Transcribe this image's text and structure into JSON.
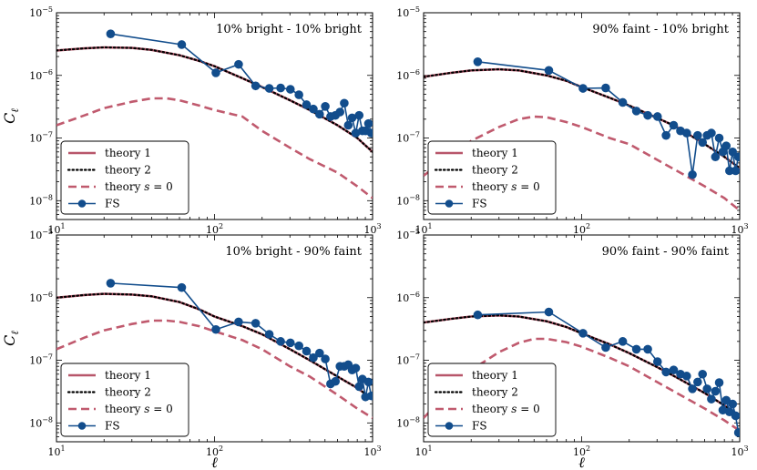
{
  "figure": {
    "xlabel": "ℓ",
    "ylabel": "C",
    "ylabel_sub": "ℓ",
    "colors": {
      "theory1": "#b8566a",
      "theory2": "#000000",
      "theory_s0": "#c05a6e",
      "fs": "#124d8c"
    }
  },
  "chart_data": [
    {
      "type": "line",
      "title": "10% bright - 10% bright",
      "xscale": "log",
      "yscale": "log",
      "xlim": [
        10,
        1000
      ],
      "ylim": [
        5e-09,
        1e-05
      ],
      "xticks": [
        "10^1",
        "10^2",
        "10^3"
      ],
      "yticks": [
        "10^-8",
        "10^-7",
        "10^-6",
        "10^-5"
      ],
      "legend": [
        "theory 1",
        "theory 2",
        "theory s = 0",
        "FS"
      ],
      "legend_position": "lower-left",
      "series": [
        {
          "name": "theory 1",
          "x": [
            10,
            15,
            20,
            30,
            40,
            60,
            80,
            100,
            150,
            200,
            300,
            400,
            600,
            800,
            1000
          ],
          "y": [
            2.5e-06,
            2.7e-06,
            2.8e-06,
            2.75e-06,
            2.55e-06,
            2.1e-06,
            1.7e-06,
            1.4e-06,
            9e-07,
            6.5e-07,
            4e-07,
            2.8e-07,
            1.6e-07,
            1e-07,
            6e-08
          ]
        },
        {
          "name": "theory 2",
          "x": [
            10,
            15,
            20,
            30,
            40,
            60,
            80,
            100,
            150,
            200,
            300,
            400,
            600,
            800,
            1000
          ],
          "y": [
            2.5e-06,
            2.7e-06,
            2.8e-06,
            2.75e-06,
            2.55e-06,
            2.1e-06,
            1.7e-06,
            1.4e-06,
            9e-07,
            6.5e-07,
            4e-07,
            2.8e-07,
            1.6e-07,
            1e-07,
            6e-08
          ]
        },
        {
          "name": "theory s = 0",
          "x": [
            10,
            15,
            20,
            30,
            40,
            50,
            60,
            80,
            100,
            150,
            200,
            300,
            400,
            600,
            800,
            1000
          ],
          "y": [
            1.6e-07,
            2.3e-07,
            3e-07,
            3.8e-07,
            4.3e-07,
            4.3e-07,
            4e-07,
            3.3e-07,
            2.8e-07,
            2.2e-07,
            1.3e-07,
            7e-08,
            4.6e-08,
            2.8e-08,
            1.7e-08,
            1.1e-08
          ]
        },
        {
          "name": "FS",
          "x": [
            22,
            62,
            102,
            142,
            182,
            222,
            262,
            302,
            342,
            382,
            422,
            462,
            502,
            542,
            582,
            622,
            662,
            702,
            742,
            782,
            822,
            862,
            902,
            942,
            982
          ],
          "y": [
            4.6e-06,
            3.1e-06,
            1.1e-06,
            1.5e-06,
            6.8e-07,
            6.2e-07,
            6.3e-07,
            6e-07,
            4.9e-07,
            3.4e-07,
            2.9e-07,
            2.4e-07,
            3.2e-07,
            2.2e-07,
            2.3e-07,
            2.6e-07,
            3.6e-07,
            1.6e-07,
            2.1e-07,
            1.2e-07,
            2.3e-07,
            1.3e-07,
            1.3e-07,
            1.7e-07,
            1.2e-07
          ]
        }
      ]
    },
    {
      "type": "line",
      "title": "90% faint - 10% bright",
      "xscale": "log",
      "yscale": "log",
      "xlim": [
        10,
        1000
      ],
      "ylim": [
        5e-09,
        1e-05
      ],
      "xticks": [
        "10^1",
        "10^2",
        "10^3"
      ],
      "yticks": [
        "10^-8",
        "10^-7",
        "10^-6",
        "10^-5"
      ],
      "legend": [
        "theory 1",
        "theory 2",
        "theory s = 0",
        "FS"
      ],
      "legend_position": "lower-left",
      "series": [
        {
          "name": "theory 1",
          "x": [
            10,
            15,
            20,
            30,
            40,
            60,
            80,
            100,
            150,
            200,
            300,
            400,
            600,
            800,
            1000
          ],
          "y": [
            9.5e-07,
            1.1e-06,
            1.2e-06,
            1.25e-06,
            1.2e-06,
            1e-06,
            8.2e-07,
            6.5e-07,
            4.4e-07,
            3.3e-07,
            2.1e-07,
            1.5e-07,
            8e-08,
            5e-08,
            3.3e-08
          ]
        },
        {
          "name": "theory 2",
          "x": [
            10,
            15,
            20,
            30,
            40,
            60,
            80,
            100,
            150,
            200,
            300,
            400,
            600,
            800,
            1000
          ],
          "y": [
            9.5e-07,
            1.1e-06,
            1.2e-06,
            1.25e-06,
            1.2e-06,
            1e-06,
            8.2e-07,
            6.5e-07,
            4.4e-07,
            3.3e-07,
            2.1e-07,
            1.5e-07,
            8e-08,
            5e-08,
            3.3e-08
          ]
        },
        {
          "name": "theory s = 0",
          "x": [
            10,
            15,
            20,
            30,
            40,
            50,
            60,
            80,
            100,
            150,
            200,
            300,
            400,
            600,
            800,
            1000
          ],
          "y": [
            2.5e-08,
            5.5e-08,
            9e-08,
            1.5e-07,
            2e-07,
            2.2e-07,
            2.15e-07,
            1.8e-07,
            1.5e-07,
            1e-07,
            8e-08,
            4.5e-08,
            3e-08,
            1.7e-08,
            1.1e-08,
            7e-09
          ]
        },
        {
          "name": "FS",
          "x": [
            22,
            62,
            102,
            142,
            182,
            222,
            262,
            302,
            342,
            382,
            422,
            462,
            502,
            542,
            582,
            622,
            662,
            702,
            742,
            782,
            822,
            862,
            902,
            942,
            982
          ],
          "y": [
            1.65e-06,
            1.2e-06,
            6.2e-07,
            6.3e-07,
            3.7e-07,
            2.7e-07,
            2.3e-07,
            2.2e-07,
            1.1e-07,
            1.6e-07,
            1.3e-07,
            1.2e-07,
            2.6e-08,
            1.1e-07,
            8.5e-08,
            1.1e-07,
            1.2e-07,
            5e-08,
            1e-07,
            6e-08,
            7.5e-08,
            3e-08,
            6e-08,
            3e-08,
            5e-08
          ]
        }
      ]
    },
    {
      "type": "line",
      "title": "10% bright - 90% faint",
      "xscale": "log",
      "yscale": "log",
      "xlim": [
        10,
        1000
      ],
      "ylim": [
        5e-09,
        1e-05
      ],
      "xticks": [
        "10^1",
        "10^2",
        "10^3"
      ],
      "yticks": [
        "10^-8",
        "10^-7",
        "10^-6",
        "10^-5"
      ],
      "legend": [
        "theory 1",
        "theory 2",
        "theory s = 0",
        "FS"
      ],
      "legend_position": "lower-left",
      "series": [
        {
          "name": "theory 1",
          "x": [
            10,
            15,
            20,
            30,
            40,
            60,
            80,
            100,
            150,
            200,
            300,
            400,
            600,
            800,
            1000
          ],
          "y": [
            1e-06,
            1.1e-06,
            1.15e-06,
            1.12e-06,
            1.05e-06,
            8.5e-07,
            6.5e-07,
            5e-07,
            3.5e-07,
            2.6e-07,
            1.5e-07,
            1e-07,
            5.5e-08,
            3.6e-08,
            2.4e-08
          ]
        },
        {
          "name": "theory 2",
          "x": [
            10,
            15,
            20,
            30,
            40,
            60,
            80,
            100,
            150,
            200,
            300,
            400,
            600,
            800,
            1000
          ],
          "y": [
            1e-06,
            1.1e-06,
            1.15e-06,
            1.12e-06,
            1.05e-06,
            8.5e-07,
            6.5e-07,
            5e-07,
            3.5e-07,
            2.6e-07,
            1.5e-07,
            1e-07,
            5.5e-08,
            3.6e-08,
            2.4e-08
          ]
        },
        {
          "name": "theory s = 0",
          "x": [
            10,
            15,
            20,
            30,
            40,
            50,
            60,
            80,
            100,
            150,
            200,
            300,
            400,
            600,
            800,
            1000
          ],
          "y": [
            1.5e-07,
            2.3e-07,
            3e-07,
            3.8e-07,
            4.3e-07,
            4.3e-07,
            4.1e-07,
            3.5e-07,
            2.9e-07,
            2.1e-07,
            1.5e-07,
            8e-08,
            5.5e-08,
            2.8e-08,
            1.7e-08,
            1.2e-08
          ]
        },
        {
          "name": "FS",
          "x": [
            22,
            62,
            102,
            142,
            182,
            222,
            262,
            302,
            342,
            382,
            422,
            462,
            502,
            542,
            582,
            622,
            662,
            702,
            742,
            782,
            822,
            862,
            902,
            942,
            982
          ],
          "y": [
            1.7e-06,
            1.45e-06,
            3.1e-07,
            4.1e-07,
            3.9e-07,
            2.6e-07,
            2e-07,
            1.9e-07,
            1.7e-07,
            1.4e-07,
            1.1e-07,
            1.3e-07,
            1.05e-07,
            4.2e-08,
            4.6e-08,
            8e-08,
            8e-08,
            8.5e-08,
            7e-08,
            7.5e-08,
            3.8e-08,
            5e-08,
            2.6e-08,
            4.5e-08,
            2.7e-08
          ]
        }
      ]
    },
    {
      "type": "line",
      "title": "90% faint - 90% faint",
      "xscale": "log",
      "yscale": "log",
      "xlim": [
        10,
        1000
      ],
      "ylim": [
        5e-09,
        1e-05
      ],
      "xticks": [
        "10^1",
        "10^2",
        "10^3"
      ],
      "yticks": [
        "10^-8",
        "10^-7",
        "10^-6",
        "10^-5"
      ],
      "legend": [
        "theory 1",
        "theory 2",
        "theory s = 0",
        "FS"
      ],
      "legend_position": "lower-left",
      "series": [
        {
          "name": "theory 1",
          "x": [
            10,
            15,
            20,
            30,
            40,
            60,
            80,
            100,
            150,
            200,
            300,
            400,
            600,
            800,
            1000
          ],
          "y": [
            4e-07,
            4.6e-07,
            5e-07,
            5.2e-07,
            5e-07,
            4.2e-07,
            3.4e-07,
            2.7e-07,
            1.8e-07,
            1.3e-07,
            7.8e-08,
            5.3e-08,
            3e-08,
            1.9e-08,
            1.3e-08
          ]
        },
        {
          "name": "theory 2",
          "x": [
            10,
            15,
            20,
            30,
            40,
            60,
            80,
            100,
            150,
            200,
            300,
            400,
            600,
            800,
            1000
          ],
          "y": [
            4e-07,
            4.6e-07,
            5e-07,
            5.2e-07,
            5e-07,
            4.2e-07,
            3.4e-07,
            2.7e-07,
            1.8e-07,
            1.3e-07,
            7.8e-08,
            5.3e-08,
            3e-08,
            1.9e-08,
            1.3e-08
          ]
        },
        {
          "name": "theory s = 0",
          "x": [
            10,
            15,
            20,
            30,
            40,
            50,
            60,
            80,
            100,
            150,
            200,
            300,
            400,
            600,
            800,
            1000
          ],
          "y": [
            1.2e-08,
            3.5e-08,
            7e-08,
            1.35e-07,
            1.9e-07,
            2.2e-07,
            2.2e-07,
            1.95e-07,
            1.65e-07,
            1.1e-07,
            8e-08,
            4.5e-08,
            3e-08,
            1.7e-08,
            1.1e-08,
            7.5e-09
          ]
        },
        {
          "name": "FS",
          "x": [
            22,
            62,
            102,
            142,
            182,
            222,
            262,
            302,
            342,
            382,
            422,
            462,
            502,
            542,
            582,
            622,
            662,
            702,
            742,
            782,
            822,
            862,
            902,
            942,
            982
          ],
          "y": [
            5.3e-07,
            5.9e-07,
            2.7e-07,
            1.6e-07,
            2e-07,
            1.5e-07,
            1.5e-07,
            9.5e-08,
            6.5e-08,
            7e-08,
            6e-08,
            5.6e-08,
            3.5e-08,
            4.5e-08,
            6e-08,
            3.5e-08,
            2.4e-08,
            3.2e-08,
            4.4e-08,
            1.6e-08,
            2.3e-08,
            1.5e-08,
            2e-08,
            1.3e-08,
            7e-09
          ]
        }
      ]
    }
  ]
}
